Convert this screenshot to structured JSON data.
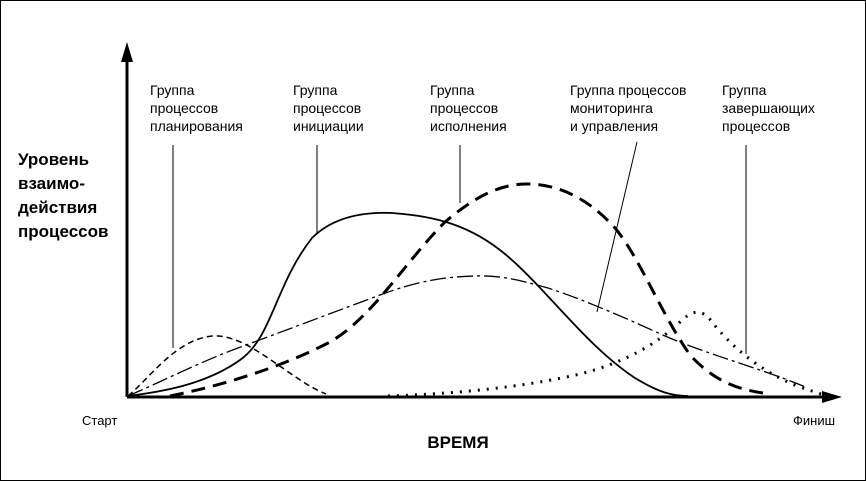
{
  "y_label": [
    "Уровень",
    "взаимо-",
    "действия",
    "процессов"
  ],
  "x_title": "ВРЕМЯ",
  "start_label": "Старт",
  "finish_label": "Финиш",
  "groups": [
    {
      "key": "planning",
      "lines": [
        "Группа",
        "процессов",
        "планирования"
      ]
    },
    {
      "key": "initiation",
      "lines": [
        "Группа",
        "процессов",
        "инициации"
      ]
    },
    {
      "key": "execution",
      "lines": [
        "Группа",
        "процессов",
        "исполнения"
      ]
    },
    {
      "key": "monitoring",
      "lines": [
        "Группа процессов",
        "мониторинга",
        "и управления"
      ]
    },
    {
      "key": "closing",
      "lines": [
        "Группа",
        "завершающих",
        "процессов"
      ]
    }
  ],
  "colors": {
    "ink": "#000000",
    "background": "#ffffff"
  }
}
